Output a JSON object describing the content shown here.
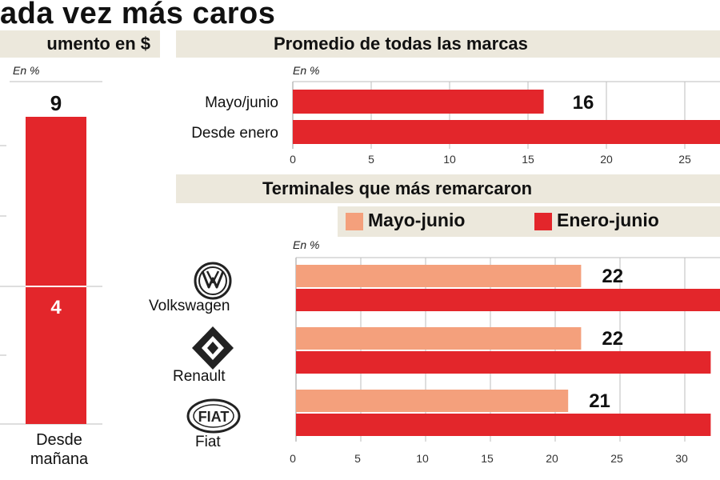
{
  "headline": "ada vez más caros",
  "left_panel": {
    "title": "umento en $",
    "unit": "En %",
    "bar_top_value": "9",
    "bar_mid_value": "4",
    "category_line1": "Desde",
    "category_line2": "mañana"
  },
  "avg_panel": {
    "title": "Promedio de todas las marcas",
    "unit": "En %"
  },
  "brands_panel": {
    "title": "Terminales que más remarcaron",
    "unit": "En %",
    "legend": [
      "Mayo-junio",
      "Enero-junio"
    ],
    "brands": [
      "Volkswagen",
      "Renault",
      "Fiat"
    ]
  },
  "colors": {
    "red": "#e3262b",
    "salmon": "#f4a07c",
    "band": "#ece8dc",
    "grid": "#bdbdbd"
  },
  "chart_data": [
    {
      "type": "bar",
      "orientation": "vertical",
      "categories": [
        "Desde mañana"
      ],
      "series": [
        {
          "values": [
            9
          ]
        }
      ],
      "annotations": [
        "9",
        "4"
      ],
      "ylabel": "En %"
    },
    {
      "type": "bar",
      "orientation": "horizontal",
      "title": "Promedio de todas las marcas",
      "ylabel": "En %",
      "categories": [
        "Mayo/junio",
        "Desde enero"
      ],
      "values": [
        16,
        28
      ],
      "value_labels": [
        "16",
        ""
      ],
      "xlim": [
        0,
        27
      ],
      "xticks": [
        0,
        5,
        10,
        15,
        20,
        25
      ],
      "grid": true
    },
    {
      "type": "bar",
      "orientation": "horizontal",
      "title": "Terminales que más remarcaron",
      "ylabel": "En %",
      "categories": [
        "Volkswagen",
        "Renault",
        "Fiat"
      ],
      "series": [
        {
          "name": "Mayo-junio",
          "values": [
            22,
            22,
            21
          ],
          "labels": [
            "22",
            "22",
            "21"
          ]
        },
        {
          "name": "Enero-junio",
          "values": [
            33,
            32,
            32
          ]
        }
      ],
      "xlim": [
        0,
        32
      ],
      "xticks": [
        0,
        5,
        10,
        15,
        20,
        25,
        30
      ],
      "grid": true,
      "legend": "top-right"
    }
  ]
}
